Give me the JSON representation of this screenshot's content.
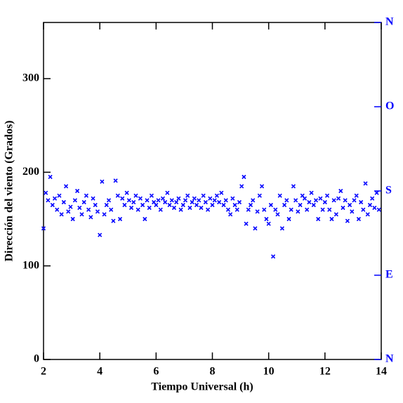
{
  "chart_data": {
    "type": "scatter",
    "xlabel": "Tiempo Universal (h)",
    "ylabel": "Dirección del viento (Grados)",
    "xlim": [
      2,
      14
    ],
    "xticks": [
      2,
      4,
      6,
      8,
      10,
      12,
      14
    ],
    "ylim": [
      0,
      360
    ],
    "yticks": [
      0,
      100,
      200,
      300
    ],
    "y2lim": [
      0,
      360
    ],
    "y2ticks": [
      {
        "value": 0,
        "label": "N"
      },
      {
        "value": 90,
        "label": "E"
      },
      {
        "value": 180,
        "label": "S"
      },
      {
        "value": 270,
        "label": "O"
      },
      {
        "value": 360,
        "label": "N"
      }
    ],
    "y2color": "#0000ff",
    "series": [
      {
        "color": "#0000ff",
        "x": [
          2.0,
          2.08,
          2.16,
          2.24,
          2.32,
          2.4,
          2.48,
          2.56,
          2.64,
          2.72,
          2.8,
          2.88,
          2.96,
          3.04,
          3.12,
          3.2,
          3.28,
          3.36,
          3.44,
          3.52,
          3.6,
          3.68,
          3.76,
          3.84,
          3.92,
          4.0,
          4.08,
          4.16,
          4.24,
          4.32,
          4.4,
          4.48,
          4.56,
          4.64,
          4.72,
          4.8,
          4.88,
          4.96,
          5.04,
          5.12,
          5.2,
          5.28,
          5.36,
          5.44,
          5.52,
          5.6,
          5.68,
          5.76,
          5.84,
          5.92,
          6.0,
          6.08,
          6.16,
          6.24,
          6.32,
          6.4,
          6.48,
          6.56,
          6.64,
          6.72,
          6.8,
          6.88,
          6.96,
          7.04,
          7.12,
          7.2,
          7.28,
          7.36,
          7.44,
          7.52,
          7.6,
          7.68,
          7.76,
          7.84,
          7.92,
          8.0,
          8.08,
          8.16,
          8.24,
          8.32,
          8.4,
          8.48,
          8.56,
          8.64,
          8.72,
          8.8,
          8.88,
          8.96,
          9.04,
          9.12,
          9.2,
          9.28,
          9.36,
          9.44,
          9.52,
          9.6,
          9.68,
          9.76,
          9.84,
          9.92,
          10.0,
          10.08,
          10.16,
          10.24,
          10.32,
          10.4,
          10.48,
          10.56,
          10.64,
          10.72,
          10.8,
          10.88,
          10.96,
          11.04,
          11.12,
          11.2,
          11.28,
          11.36,
          11.44,
          11.52,
          11.6,
          11.68,
          11.76,
          11.84,
          11.92,
          12.0,
          12.08,
          12.16,
          12.24,
          12.32,
          12.4,
          12.48,
          12.56,
          12.64,
          12.72,
          12.8,
          12.88,
          12.96,
          13.04,
          13.12,
          13.2,
          13.28,
          13.36,
          13.44,
          13.52,
          13.6,
          13.68,
          13.76,
          13.84,
          13.92
        ],
        "values": [
          140,
          178,
          170,
          195,
          165,
          172,
          160,
          175,
          155,
          168,
          185,
          158,
          163,
          150,
          170,
          180,
          162,
          155,
          168,
          175,
          160,
          152,
          172,
          165,
          158,
          133,
          190,
          155,
          165,
          170,
          160,
          148,
          191,
          175,
          150,
          172,
          165,
          178,
          170,
          162,
          168,
          175,
          160,
          172,
          165,
          150,
          170,
          162,
          175,
          168,
          165,
          170,
          160,
          172,
          168,
          178,
          165,
          170,
          162,
          168,
          172,
          160,
          165,
          170,
          175,
          162,
          168,
          172,
          165,
          170,
          162,
          175,
          168,
          160,
          172,
          165,
          170,
          175,
          168,
          178,
          165,
          170,
          160,
          155,
          172,
          165,
          160,
          168,
          185,
          195,
          145,
          160,
          165,
          170,
          140,
          158,
          175,
          185,
          160,
          150,
          145,
          165,
          110,
          160,
          155,
          175,
          140,
          165,
          170,
          150,
          160,
          185,
          170,
          158,
          165,
          175,
          172,
          160,
          168,
          178,
          165,
          170,
          150,
          172,
          160,
          168,
          175,
          160,
          150,
          170,
          155,
          172,
          180,
          162,
          170,
          148,
          165,
          158,
          170,
          175,
          150,
          168,
          160,
          188,
          155,
          165,
          172,
          162,
          178,
          160
        ]
      }
    ]
  }
}
